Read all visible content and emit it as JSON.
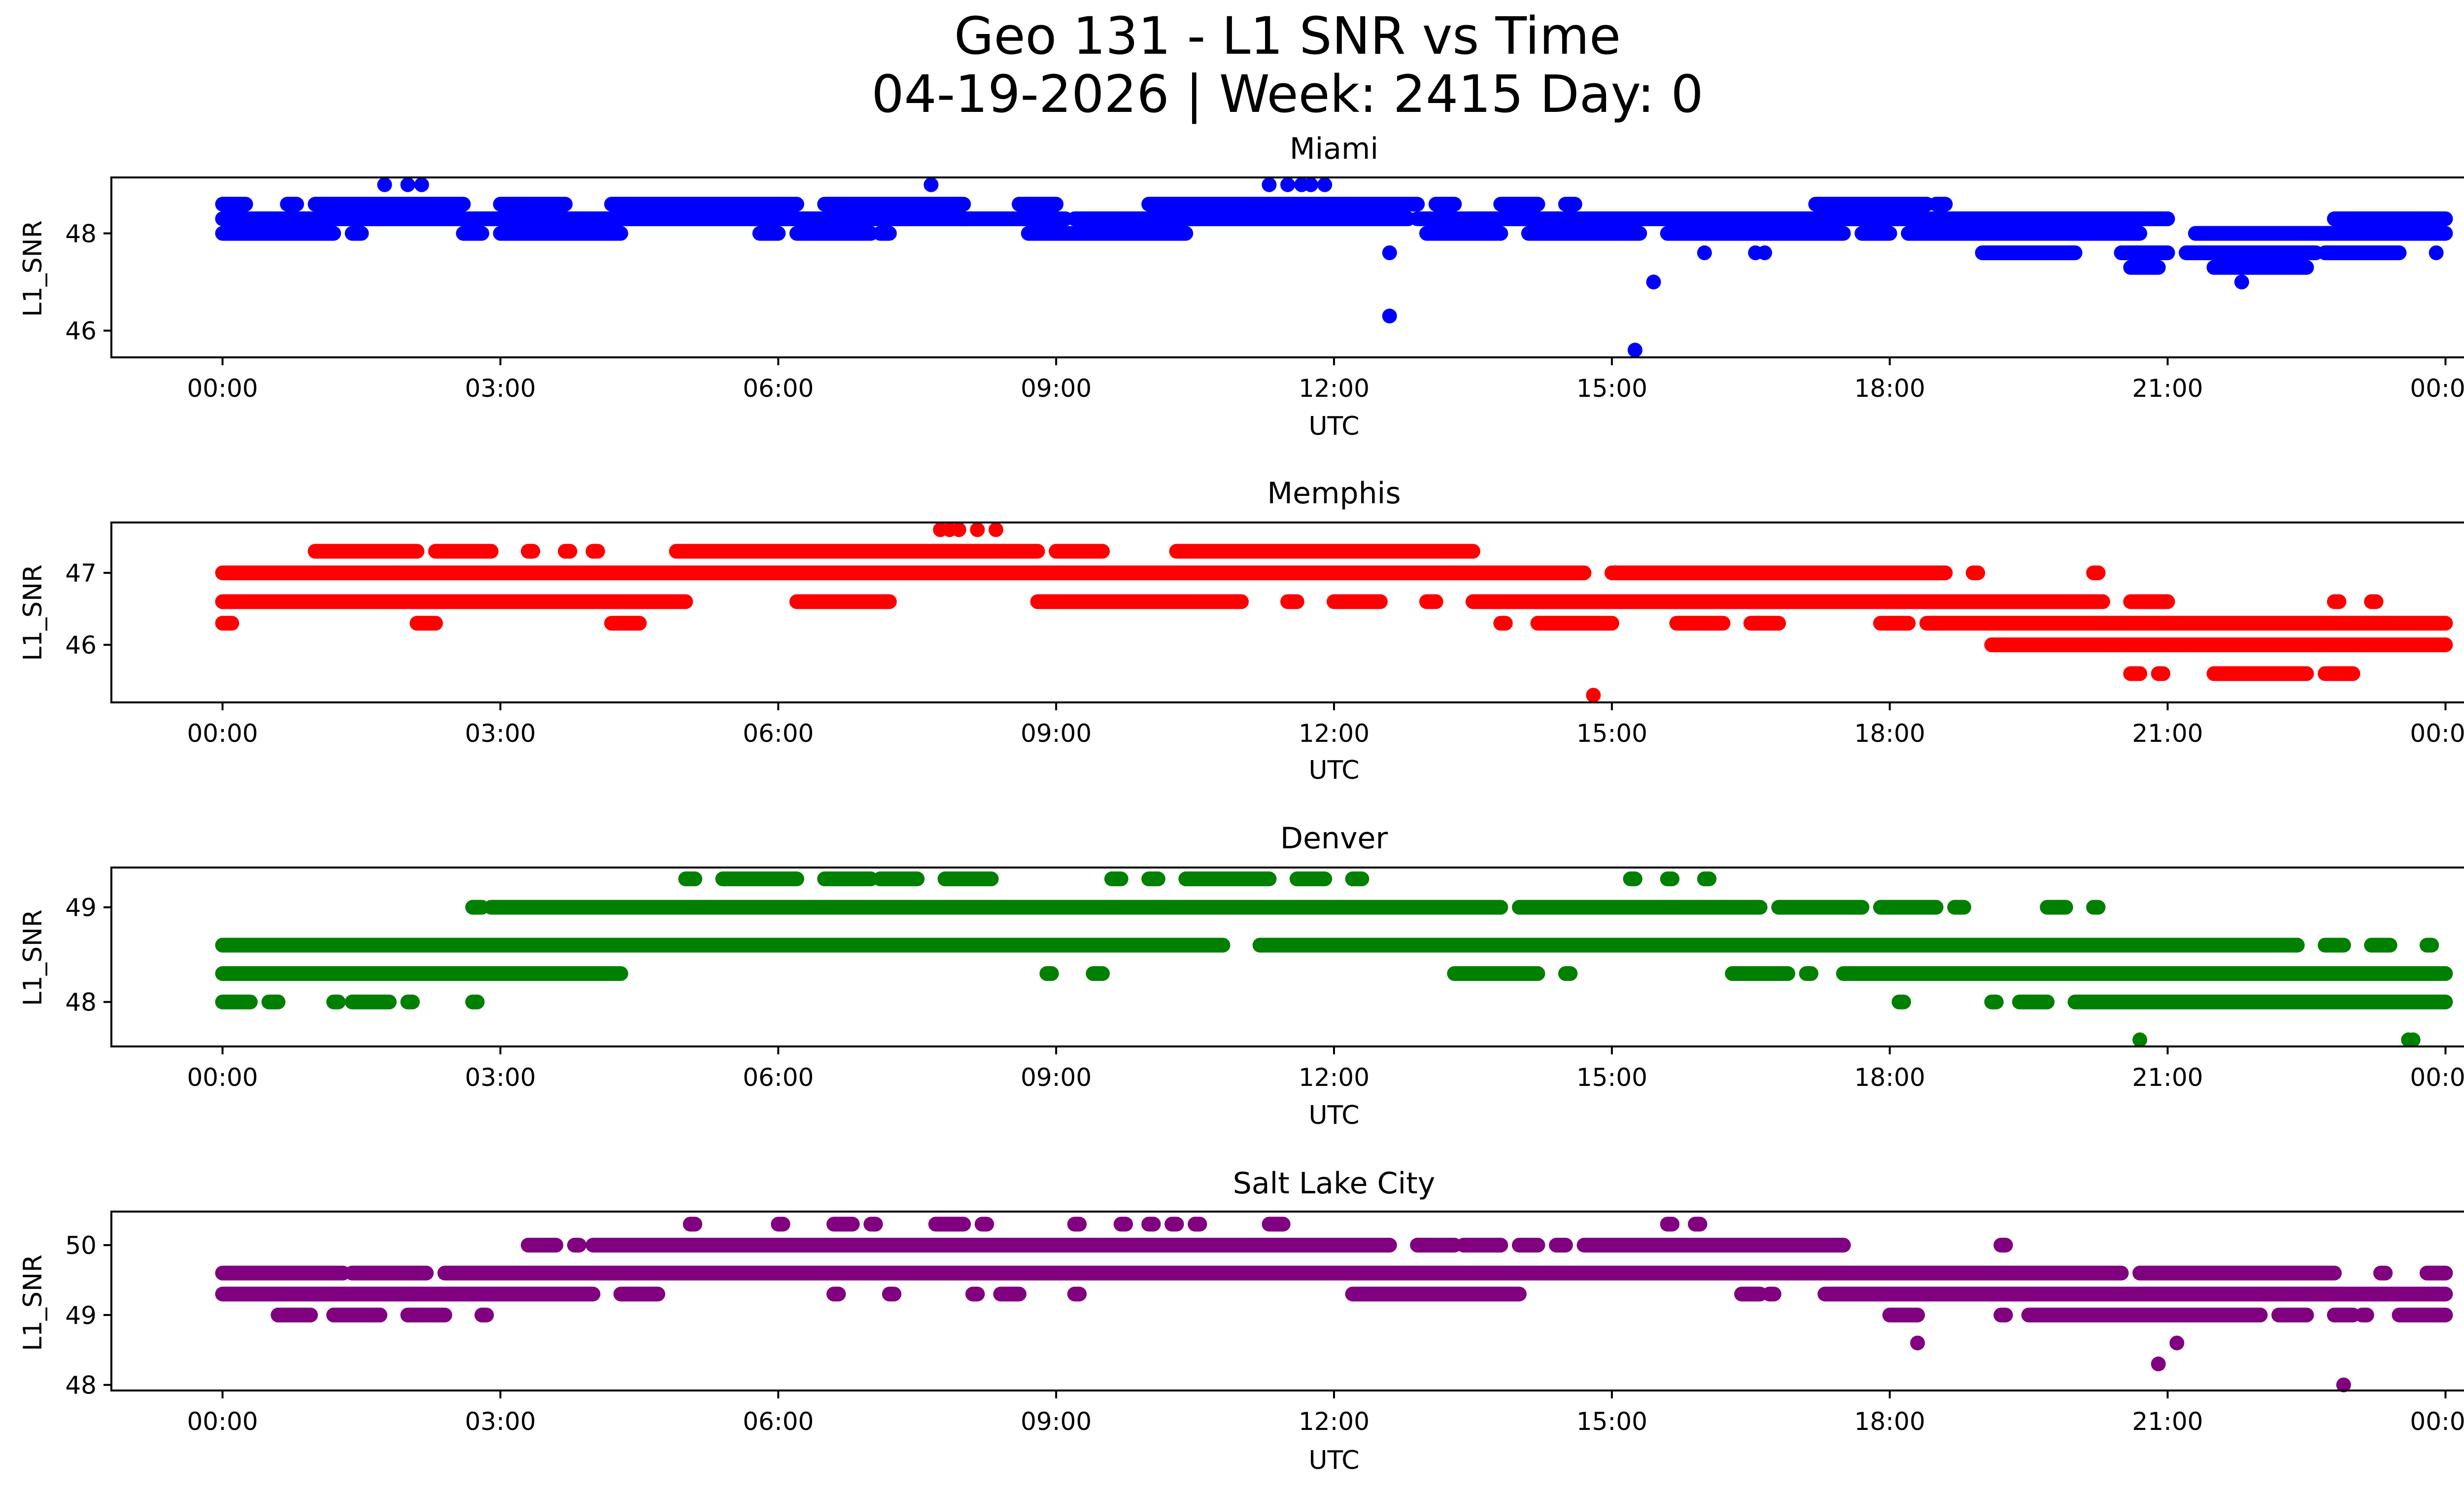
{
  "figure": {
    "title": "Geo 131 - L1 SNR vs Time",
    "subtitle": "04-19-2026 | Week: 2415 Day: 0"
  },
  "chart_data": [
    {
      "type": "scatter",
      "title": "Miami",
      "xlabel": "UTC",
      "ylabel": "L1_SNR",
      "color": "#0000ff",
      "x_ticks": [
        "00:00",
        "03:00",
        "06:00",
        "09:00",
        "12:00",
        "15:00",
        "18:00",
        "21:00",
        "00:00"
      ],
      "y_ticks": [
        46,
        48
      ],
      "xlim": [
        -1.2,
        25.2
      ],
      "ylim": [
        45.45,
        49.15
      ],
      "bands": [
        {
          "y": 48.6,
          "ranges": [
            [
              0.0,
              0.25
            ],
            [
              0.7,
              0.8
            ],
            [
              1.0,
              2.6
            ],
            [
              3.0,
              3.7
            ],
            [
              4.2,
              6.2
            ],
            [
              6.5,
              8.0
            ],
            [
              8.6,
              9.0
            ],
            [
              10.0,
              12.9
            ],
            [
              13.1,
              13.3
            ],
            [
              13.8,
              14.2
            ],
            [
              14.5,
              14.6
            ],
            [
              17.2,
              18.4
            ],
            [
              18.5,
              18.6
            ]
          ]
        },
        {
          "y": 48.3,
          "ranges": [
            [
              0.0,
              3.5
            ],
            [
              3.4,
              8.0
            ],
            [
              8.0,
              9.1
            ],
            [
              9.2,
              12.8
            ],
            [
              12.9,
              14.0
            ],
            [
              14.0,
              18.8
            ],
            [
              18.8,
              19.6
            ],
            [
              19.6,
              21.0
            ],
            [
              22.8,
              24.0
            ]
          ]
        },
        {
          "y": 48.0,
          "ranges": [
            [
              0.0,
              1.2
            ],
            [
              1.4,
              1.5
            ],
            [
              2.6,
              2.8
            ],
            [
              3.0,
              4.3
            ],
            [
              5.8,
              6.0
            ],
            [
              6.2,
              7.0
            ],
            [
              7.1,
              7.2
            ],
            [
              8.7,
              10.4
            ],
            [
              13.0,
              13.8
            ],
            [
              14.1,
              15.3
            ],
            [
              15.6,
              17.5
            ],
            [
              17.7,
              18.0
            ],
            [
              18.2,
              20.7
            ],
            [
              21.3,
              24.0
            ]
          ]
        },
        {
          "y": 47.6,
          "ranges": [
            [
              19.0,
              20.0
            ],
            [
              20.5,
              21.0
            ],
            [
              21.2,
              22.6
            ],
            [
              22.7,
              23.5
            ]
          ]
        },
        {
          "y": 47.3,
          "ranges": [
            [
              20.6,
              20.9
            ],
            [
              21.5,
              22.5
            ]
          ]
        }
      ],
      "points": [
        [
          1.75,
          49.0
        ],
        [
          2.0,
          49.0
        ],
        [
          2.15,
          49.0
        ],
        [
          7.65,
          49.0
        ],
        [
          11.3,
          49.0
        ],
        [
          11.5,
          49.0
        ],
        [
          11.65,
          49.0
        ],
        [
          11.75,
          49.0
        ],
        [
          11.9,
          49.0
        ],
        [
          12.6,
          47.6
        ],
        [
          12.6,
          46.3
        ],
        [
          15.25,
          45.6
        ],
        [
          15.45,
          47.0
        ],
        [
          16.0,
          47.6
        ],
        [
          16.55,
          47.6
        ],
        [
          16.65,
          47.6
        ],
        [
          21.8,
          47.0
        ],
        [
          23.9,
          47.6
        ]
      ]
    },
    {
      "type": "scatter",
      "title": "Memphis",
      "xlabel": "UTC",
      "ylabel": "L1_SNR",
      "color": "#ff0000",
      "x_ticks": [
        "00:00",
        "03:00",
        "06:00",
        "09:00",
        "12:00",
        "15:00",
        "18:00",
        "21:00",
        "00:00"
      ],
      "y_ticks": [
        46,
        47
      ],
      "xlim": [
        -1.2,
        25.2
      ],
      "ylim": [
        45.2,
        47.7
      ],
      "bands": [
        {
          "y": 47.3,
          "ranges": [
            [
              1.0,
              2.1
            ],
            [
              2.3,
              2.9
            ],
            [
              3.3,
              3.35
            ],
            [
              3.7,
              3.75
            ],
            [
              4.0,
              4.05
            ],
            [
              4.9,
              8.8
            ],
            [
              9.0,
              9.5
            ],
            [
              10.3,
              13.5
            ]
          ]
        },
        {
          "y": 47.0,
          "ranges": [
            [
              0.0,
              14.7
            ],
            [
              15.0,
              18.6
            ],
            [
              18.9,
              18.95
            ],
            [
              20.2,
              20.25
            ]
          ]
        },
        {
          "y": 46.6,
          "ranges": [
            [
              0.0,
              5.0
            ],
            [
              6.2,
              7.2
            ],
            [
              8.8,
              11.0
            ],
            [
              11.5,
              11.6
            ],
            [
              12.0,
              12.5
            ],
            [
              13.0,
              13.1
            ],
            [
              13.5,
              20.3
            ],
            [
              20.6,
              21.0
            ],
            [
              22.8,
              22.85
            ],
            [
              23.2,
              23.25
            ]
          ]
        },
        {
          "y": 46.3,
          "ranges": [
            [
              0.0,
              0.1
            ],
            [
              2.1,
              2.3
            ],
            [
              4.2,
              4.5
            ],
            [
              13.8,
              13.85
            ],
            [
              14.2,
              15.0
            ],
            [
              15.7,
              16.2
            ],
            [
              16.5,
              16.8
            ],
            [
              17.9,
              18.2
            ],
            [
              18.4,
              24.0
            ]
          ]
        },
        {
          "y": 46.0,
          "ranges": [
            [
              19.1,
              24.0
            ]
          ]
        },
        {
          "y": 45.6,
          "ranges": [
            [
              20.6,
              20.7
            ],
            [
              20.9,
              20.95
            ],
            [
              21.5,
              22.5
            ],
            [
              22.7,
              23.0
            ]
          ]
        }
      ],
      "points": [
        [
          7.75,
          47.6
        ],
        [
          7.85,
          47.6
        ],
        [
          7.95,
          47.6
        ],
        [
          8.15,
          47.6
        ],
        [
          8.35,
          47.6
        ],
        [
          14.8,
          45.3
        ]
      ]
    },
    {
      "type": "scatter",
      "title": "Denver",
      "xlabel": "UTC",
      "ylabel": "L1_SNR",
      "color": "#008000",
      "x_ticks": [
        "00:00",
        "03:00",
        "06:00",
        "09:00",
        "12:00",
        "15:00",
        "18:00",
        "21:00",
        "00:00"
      ],
      "y_ticks": [
        48,
        49
      ],
      "xlim": [
        -1.2,
        25.2
      ],
      "ylim": [
        47.53,
        49.42
      ],
      "bands": [
        {
          "y": 49.3,
          "ranges": [
            [
              5.0,
              5.1
            ],
            [
              5.4,
              6.2
            ],
            [
              6.5,
              7.0
            ],
            [
              7.1,
              7.5
            ],
            [
              7.8,
              8.3
            ],
            [
              9.6,
              9.7
            ],
            [
              10.0,
              10.1
            ],
            [
              10.4,
              11.3
            ],
            [
              11.6,
              11.9
            ],
            [
              12.2,
              12.3
            ],
            [
              15.2,
              15.25
            ],
            [
              15.6,
              15.65
            ],
            [
              16.0,
              16.05
            ]
          ]
        },
        {
          "y": 49.0,
          "ranges": [
            [
              2.7,
              2.8
            ],
            [
              2.9,
              13.8
            ],
            [
              14.0,
              16.6
            ],
            [
              16.8,
              17.7
            ],
            [
              17.9,
              18.5
            ],
            [
              18.7,
              18.8
            ],
            [
              19.7,
              19.9
            ],
            [
              20.2,
              20.25
            ]
          ]
        },
        {
          "y": 48.6,
          "ranges": [
            [
              0.0,
              10.8
            ],
            [
              11.2,
              22.4
            ],
            [
              22.7,
              22.9
            ],
            [
              23.2,
              23.4
            ],
            [
              23.8,
              23.85
            ]
          ]
        },
        {
          "y": 48.3,
          "ranges": [
            [
              0.0,
              4.3
            ],
            [
              8.9,
              8.95
            ],
            [
              9.4,
              9.5
            ],
            [
              13.3,
              14.2
            ],
            [
              14.5,
              14.55
            ],
            [
              16.3,
              16.9
            ],
            [
              17.1,
              17.15
            ],
            [
              17.5,
              24.0
            ]
          ]
        },
        {
          "y": 48.0,
          "ranges": [
            [
              0.0,
              0.3
            ],
            [
              0.5,
              0.6
            ],
            [
              1.2,
              1.25
            ],
            [
              1.4,
              1.8
            ],
            [
              2.0,
              2.05
            ],
            [
              2.7,
              2.75
            ],
            [
              18.1,
              18.15
            ],
            [
              19.1,
              19.15
            ],
            [
              19.4,
              19.7
            ],
            [
              20.0,
              24.0
            ]
          ]
        }
      ],
      "points": [
        [
          20.7,
          47.6
        ],
        [
          23.6,
          47.6
        ],
        [
          23.65,
          47.6
        ]
      ]
    },
    {
      "type": "scatter",
      "title": "Salt Lake City",
      "xlabel": "UTC",
      "ylabel": "L1_SNR",
      "color": "#800080",
      "x_ticks": [
        "00:00",
        "03:00",
        "06:00",
        "09:00",
        "12:00",
        "15:00",
        "18:00",
        "21:00",
        "00:00"
      ],
      "y_ticks": [
        48,
        49,
        50
      ],
      "xlim": [
        -1.2,
        25.2
      ],
      "ylim": [
        47.92,
        50.48
      ],
      "bands": [
        {
          "y": 50.3,
          "ranges": [
            [
              5.05,
              5.1
            ],
            [
              6.0,
              6.05
            ],
            [
              6.6,
              6.8
            ],
            [
              7.0,
              7.05
            ],
            [
              7.7,
              8.0
            ],
            [
              8.2,
              8.25
            ],
            [
              9.2,
              9.25
            ],
            [
              9.7,
              9.75
            ],
            [
              10.0,
              10.05
            ],
            [
              10.25,
              10.3
            ],
            [
              10.5,
              10.55
            ],
            [
              11.3,
              11.45
            ],
            [
              15.6,
              15.65
            ],
            [
              15.9,
              15.95
            ]
          ]
        },
        {
          "y": 50.0,
          "ranges": [
            [
              3.3,
              3.6
            ],
            [
              3.8,
              3.85
            ],
            [
              4.0,
              12.6
            ],
            [
              12.9,
              13.3
            ],
            [
              13.4,
              13.8
            ],
            [
              14.0,
              14.2
            ],
            [
              14.4,
              14.5
            ],
            [
              14.7,
              17.5
            ],
            [
              19.2,
              19.25
            ]
          ]
        },
        {
          "y": 49.6,
          "ranges": [
            [
              0.0,
              1.3
            ],
            [
              1.4,
              2.2
            ],
            [
              2.4,
              20.5
            ],
            [
              20.7,
              22.8
            ],
            [
              23.3,
              23.35
            ],
            [
              23.8,
              24.0
            ]
          ]
        },
        {
          "y": 49.3,
          "ranges": [
            [
              0.0,
              4.0
            ],
            [
              4.3,
              4.7
            ],
            [
              6.6,
              6.65
            ],
            [
              7.2,
              7.25
            ],
            [
              8.1,
              8.15
            ],
            [
              8.4,
              8.6
            ],
            [
              9.2,
              9.25
            ],
            [
              12.2,
              14.0
            ],
            [
              16.4,
              16.6
            ],
            [
              16.7,
              16.75
            ],
            [
              17.3,
              24.0
            ]
          ]
        },
        {
          "y": 49.0,
          "ranges": [
            [
              0.6,
              0.95
            ],
            [
              1.2,
              1.7
            ],
            [
              2.0,
              2.4
            ],
            [
              2.8,
              2.85
            ],
            [
              18.0,
              18.3
            ],
            [
              19.2,
              19.25
            ],
            [
              19.5,
              22.0
            ],
            [
              22.2,
              22.5
            ],
            [
              22.8,
              23.0
            ],
            [
              23.1,
              23.15
            ],
            [
              23.5,
              24.0
            ]
          ]
        }
      ],
      "points": [
        [
          18.3,
          48.6
        ],
        [
          20.9,
          48.3
        ],
        [
          21.1,
          48.6
        ],
        [
          22.9,
          48.0
        ]
      ]
    }
  ]
}
